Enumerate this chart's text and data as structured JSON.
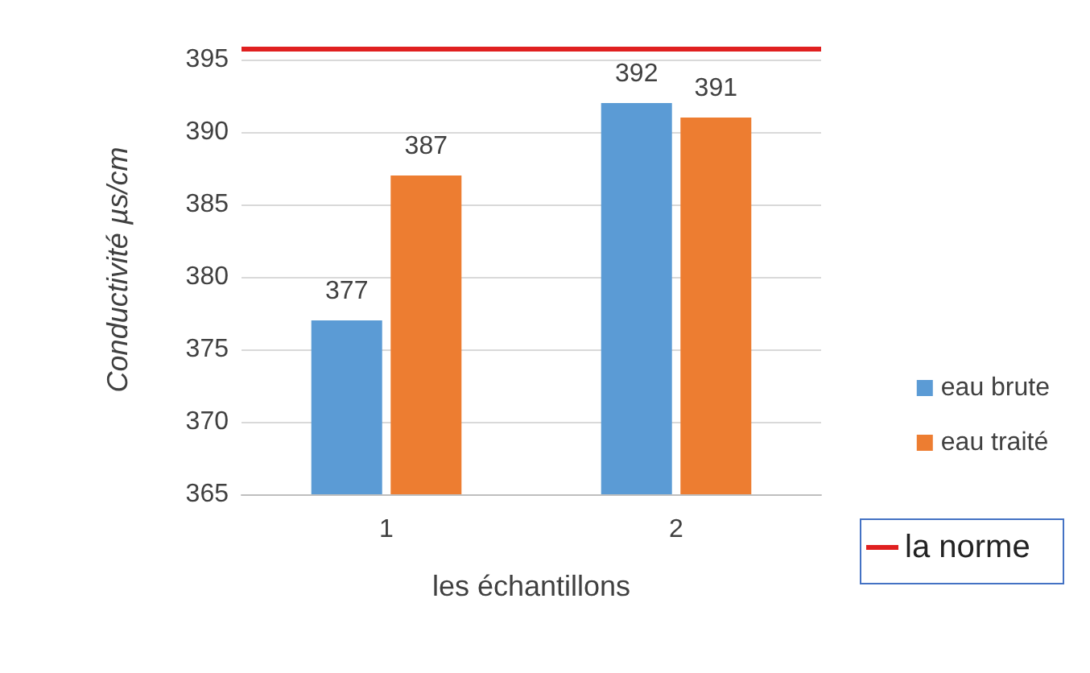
{
  "chart_data": {
    "type": "bar",
    "xlabel": "les échantillons",
    "ylabel": "Conductivité µs/cm",
    "categories": [
      "1",
      "2"
    ],
    "series": [
      {
        "name": "eau brute",
        "color": "#5b9bd5",
        "values": [
          377,
          392
        ]
      },
      {
        "name": "eau traité",
        "color": "#ed7d31",
        "values": [
          387,
          391
        ]
      }
    ],
    "ylim": [
      365,
      396
    ],
    "yticks": [
      365,
      370,
      375,
      380,
      385,
      390,
      395
    ],
    "grid": "y",
    "legend": "right",
    "data_labels": true,
    "ref_lines": [
      {
        "axis": "y",
        "value": 395.8,
        "label": "la norme",
        "color": "#e02020"
      }
    ]
  }
}
